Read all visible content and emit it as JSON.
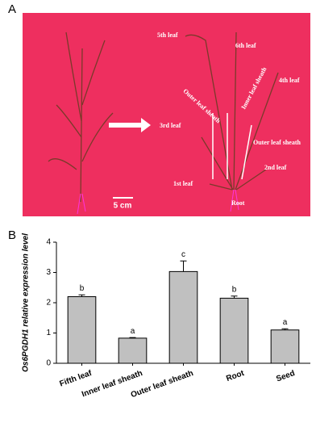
{
  "panel_a": {
    "letter": "A",
    "labels": [
      "5th leaf",
      "6th leaf",
      "Inner leaf sheath",
      "4th leaf",
      "Outer leaf sheath",
      "3rd leaf",
      "Outer leaf sheath",
      "2nd leaf",
      "1st leaf",
      "Root"
    ],
    "scale": "5 cm"
  },
  "panel_b": {
    "letter": "B"
  },
  "chart_data": {
    "type": "bar",
    "y_label": "Os6PGDH1 relative expression level",
    "categories": [
      "Fifth leaf",
      "Inner leaf sheath",
      "Outer leaf sheath",
      "Root",
      "Seed"
    ],
    "values": [
      2.2,
      0.83,
      3.03,
      2.15,
      1.1
    ],
    "errors": [
      0.06,
      0.02,
      0.35,
      0.07,
      0.04
    ],
    "annotations": [
      "b",
      "a",
      "c",
      "b",
      "a"
    ],
    "color": "#c0c0c0",
    "ylim": [
      0,
      4
    ],
    "yticks": [
      0,
      1,
      2,
      3,
      4
    ]
  }
}
